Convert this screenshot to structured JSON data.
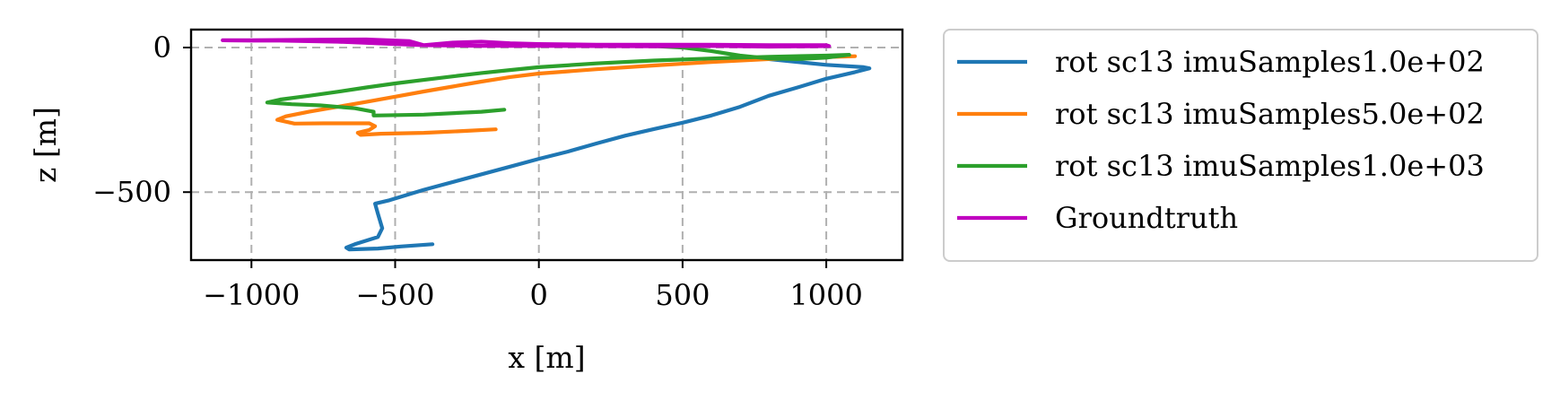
{
  "chart_data": {
    "type": "line",
    "xlabel": "x [m]",
    "ylabel": "z [m]",
    "xlim": [
      -1210,
      1265
    ],
    "ylim": [
      -735,
      62
    ],
    "xticks": [
      -1000,
      -500,
      0,
      500,
      1000
    ],
    "yticks": [
      0,
      -500
    ],
    "xtick_labels": [
      "−1000",
      "−500",
      "0",
      "500",
      "1000"
    ],
    "ytick_labels": [
      "0",
      "−500"
    ],
    "grid": true,
    "legend_position": "outside-right",
    "series": [
      {
        "name": "rot sc13 imuSamples1.0e+02",
        "color": "#1f77b4",
        "points": [
          [
            -370,
            -680
          ],
          [
            -480,
            -688
          ],
          [
            -560,
            -695
          ],
          [
            -660,
            -698
          ],
          [
            -670,
            -692
          ],
          [
            -640,
            -680
          ],
          [
            -560,
            -655
          ],
          [
            -545,
            -625
          ],
          [
            -560,
            -575
          ],
          [
            -570,
            -540
          ],
          [
            -520,
            -528
          ],
          [
            -400,
            -492
          ],
          [
            -250,
            -452
          ],
          [
            -100,
            -412
          ],
          [
            0,
            -385
          ],
          [
            100,
            -360
          ],
          [
            200,
            -332
          ],
          [
            300,
            -305
          ],
          [
            400,
            -282
          ],
          [
            500,
            -260
          ],
          [
            600,
            -235
          ],
          [
            700,
            -205
          ],
          [
            800,
            -167
          ],
          [
            900,
            -138
          ],
          [
            1000,
            -108
          ],
          [
            1100,
            -85
          ],
          [
            1150,
            -72
          ],
          [
            1130,
            -68
          ],
          [
            1000,
            -60
          ],
          [
            900,
            -50
          ],
          [
            800,
            -40
          ],
          [
            700,
            -30
          ]
        ]
      },
      {
        "name": "rot sc13 imuSamples5.0e+02",
        "color": "#ff7f0e",
        "points": [
          [
            -150,
            -283
          ],
          [
            -250,
            -288
          ],
          [
            -400,
            -295
          ],
          [
            -550,
            -298
          ],
          [
            -620,
            -302
          ],
          [
            -630,
            -295
          ],
          [
            -590,
            -285
          ],
          [
            -570,
            -272
          ],
          [
            -590,
            -262
          ],
          [
            -650,
            -262
          ],
          [
            -750,
            -262
          ],
          [
            -850,
            -263
          ],
          [
            -910,
            -250
          ],
          [
            -880,
            -238
          ],
          [
            -800,
            -222
          ],
          [
            -700,
            -205
          ],
          [
            -600,
            -188
          ],
          [
            -500,
            -170
          ],
          [
            -400,
            -152
          ],
          [
            -300,
            -135
          ],
          [
            -200,
            -118
          ],
          [
            -100,
            -102
          ],
          [
            0,
            -90
          ],
          [
            200,
            -75
          ],
          [
            400,
            -62
          ],
          [
            600,
            -50
          ],
          [
            800,
            -40
          ],
          [
            1000,
            -33
          ],
          [
            1100,
            -30
          ]
        ]
      },
      {
        "name": "rot sc13 imuSamples1.0e+03",
        "color": "#2ca02c",
        "points": [
          [
            -120,
            -215
          ],
          [
            -200,
            -222
          ],
          [
            -400,
            -232
          ],
          [
            -575,
            -235
          ],
          [
            -575,
            -222
          ],
          [
            -640,
            -210
          ],
          [
            -760,
            -200
          ],
          [
            -860,
            -196
          ],
          [
            -945,
            -190
          ],
          [
            -900,
            -180
          ],
          [
            -800,
            -167
          ],
          [
            -700,
            -153
          ],
          [
            -600,
            -138
          ],
          [
            -500,
            -124
          ],
          [
            -400,
            -112
          ],
          [
            -300,
            -100
          ],
          [
            -200,
            -88
          ],
          [
            -100,
            -78
          ],
          [
            0,
            -68
          ],
          [
            200,
            -55
          ],
          [
            400,
            -45
          ],
          [
            600,
            -38
          ],
          [
            800,
            -32
          ],
          [
            1000,
            -28
          ],
          [
            1080,
            -25
          ],
          [
            1000,
            -35
          ],
          [
            900,
            -40
          ],
          [
            800,
            -38
          ],
          [
            700,
            -28
          ],
          [
            600,
            -12
          ],
          [
            500,
            0
          ],
          [
            400,
            5
          ]
        ]
      },
      {
        "name": "Groundtruth",
        "color": "#c000c0",
        "points": [
          [
            -1100,
            25
          ],
          [
            -1000,
            25
          ],
          [
            -800,
            27
          ],
          [
            -600,
            28
          ],
          [
            -450,
            22
          ],
          [
            -400,
            8
          ],
          [
            -300,
            17
          ],
          [
            -200,
            20
          ],
          [
            -100,
            15
          ],
          [
            0,
            12
          ],
          [
            200,
            10
          ],
          [
            400,
            10
          ],
          [
            600,
            10
          ],
          [
            800,
            8
          ],
          [
            1000,
            8
          ],
          [
            1010,
            5
          ],
          [
            800,
            3
          ],
          [
            600,
            6
          ],
          [
            400,
            4
          ],
          [
            200,
            5
          ],
          [
            0,
            6
          ],
          [
            -200,
            6
          ],
          [
            -400,
            8
          ],
          [
            -500,
            12
          ],
          [
            -600,
            16
          ],
          [
            -700,
            20
          ],
          [
            -800,
            22
          ],
          [
            -900,
            24
          ],
          [
            -1000,
            24
          ],
          [
            -1100,
            25
          ]
        ]
      }
    ]
  }
}
